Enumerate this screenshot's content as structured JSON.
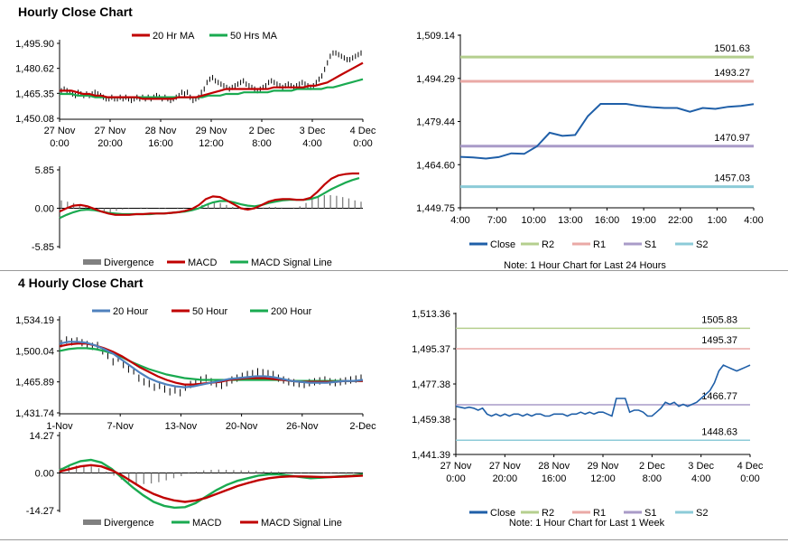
{
  "sections": {
    "hourly_title": "Hourly Close Chart",
    "four_hourly_title": "4 Hourly Close Chart"
  },
  "colors": {
    "close": "#1f5fa8",
    "r2": "#b5cf8e",
    "r1": "#eaa9a6",
    "s1": "#a99bc8",
    "s2": "#8ccbd8",
    "ma_red": "#c00000",
    "ma_green": "#1aaa50",
    "ma_blue": "#4f81bd",
    "divergence": "#808080",
    "price": "#000000"
  },
  "chart_data": [
    {
      "id": "hourly_price",
      "type": "line",
      "title": "",
      "legend": [
        "20 Hr MA",
        "50 Hrs MA"
      ],
      "yticks": [
        "1,495.90",
        "1,480.62",
        "1,465.35",
        "1,450.08"
      ],
      "ylim": [
        1450.08,
        1495.9
      ],
      "xticks": [
        [
          "27 Nov",
          "0:00"
        ],
        [
          "27 Nov",
          "20:00"
        ],
        [
          "28 Nov",
          "16:00"
        ],
        [
          "29 Nov",
          "12:00"
        ],
        [
          "2 Dec",
          "8:00"
        ],
        [
          "3 Dec",
          "4:00"
        ],
        [
          "4 Dec",
          "0:00"
        ]
      ],
      "series": [
        {
          "name": "Price",
          "values": [
            1467,
            1468,
            1467,
            1466,
            1465,
            1464,
            1466,
            1465,
            1464,
            1465,
            1464,
            1465,
            1466,
            1465,
            1464,
            1463,
            1462,
            1462,
            1463,
            1462,
            1462,
            1463,
            1462,
            1463,
            1462,
            1461,
            1462,
            1463,
            1462,
            1463,
            1462,
            1463,
            1462,
            1463,
            1464,
            1463,
            1462,
            1463,
            1462,
            1461,
            1462,
            1463,
            1464,
            1466,
            1465,
            1466,
            1463,
            1461,
            1462,
            1463,
            1466,
            1468,
            1472,
            1474,
            1475,
            1473,
            1472,
            1471,
            1470,
            1469,
            1468,
            1469,
            1470,
            1471,
            1472,
            1473,
            1471,
            1470,
            1469,
            1468,
            1467,
            1468,
            1469,
            1470,
            1472,
            1473,
            1472,
            1471,
            1470,
            1469,
            1470,
            1471,
            1470,
            1469,
            1470,
            1471,
            1472,
            1471,
            1470,
            1469,
            1470,
            1472,
            1474,
            1476,
            1480,
            1484,
            1488,
            1490,
            1490,
            1489,
            1488,
            1487,
            1486,
            1486,
            1487,
            1488,
            1489,
            1490
          ]
        },
        {
          "name": "20 Hr MA",
          "values": [
            1467,
            1467,
            1467,
            1466,
            1465,
            1465,
            1464,
            1464,
            1463,
            1463,
            1463,
            1463,
            1463,
            1463,
            1462,
            1462,
            1462,
            1462,
            1462,
            1462,
            1463,
            1463,
            1463,
            1463,
            1464,
            1465,
            1466,
            1467,
            1468,
            1468,
            1468,
            1468,
            1468,
            1468,
            1468,
            1468,
            1469,
            1469,
            1469,
            1469,
            1469,
            1469,
            1470,
            1470,
            1471,
            1472,
            1474,
            1476,
            1478,
            1480,
            1482,
            1484
          ]
        },
        {
          "name": "50 Hrs MA",
          "values": [
            1465,
            1465,
            1465,
            1464,
            1464,
            1464,
            1463,
            1463,
            1463,
            1463,
            1463,
            1463,
            1463,
            1463,
            1463,
            1463,
            1463,
            1463,
            1463,
            1463,
            1463,
            1463,
            1463,
            1463,
            1463,
            1464,
            1464,
            1464,
            1465,
            1465,
            1465,
            1466,
            1466,
            1466,
            1466,
            1466,
            1467,
            1467,
            1467,
            1467,
            1468,
            1468,
            1468,
            1468,
            1468,
            1469,
            1469,
            1470,
            1471,
            1472,
            1473,
            1474
          ]
        }
      ]
    },
    {
      "id": "hourly_macd",
      "type": "line",
      "title": "",
      "legend": [
        "Divergence",
        "MACD",
        "MACD Signal Line"
      ],
      "yticks": [
        "5.85",
        "0.00",
        "-5.85"
      ],
      "ylim": [
        -5.85,
        5.85
      ],
      "series": [
        {
          "name": "Divergence",
          "values": [
            1.2,
            1.0,
            0.8,
            0.6,
            0.3,
            -0.1,
            -0.3,
            -0.5,
            -0.6,
            -0.4,
            -0.2,
            -0.1,
            0.0,
            0.1,
            0.1,
            0.0,
            -0.1,
            -0.1,
            0.0,
            0.1,
            0.1,
            0.0,
            0.2,
            0.5,
            0.8,
            1.0,
            0.8,
            0.5,
            0.2,
            0.0,
            -0.3,
            -0.2,
            0.0,
            0.1,
            0.2,
            0.2,
            0.1,
            0.0,
            0.1,
            0.3,
            0.8,
            1.4,
            1.8,
            2.0,
            2.0,
            1.9,
            1.7,
            1.5,
            1.2,
            1.0
          ]
        },
        {
          "name": "MACD",
          "values": [
            -0.5,
            0.0,
            0.4,
            0.5,
            0.3,
            -0.1,
            -0.5,
            -0.8,
            -1.0,
            -1.0,
            -1.0,
            -0.9,
            -0.9,
            -0.8,
            -0.8,
            -0.8,
            -0.7,
            -0.6,
            -0.4,
            -0.1,
            0.5,
            1.4,
            1.8,
            1.7,
            1.2,
            0.6,
            0.0,
            -0.2,
            0.0,
            0.5,
            1.0,
            1.3,
            1.4,
            1.4,
            1.3,
            1.3,
            1.6,
            2.5,
            3.6,
            4.5,
            5.0,
            5.2,
            5.3,
            5.3
          ]
        },
        {
          "name": "MACD Signal Line",
          "values": [
            -1.5,
            -1.0,
            -0.6,
            -0.3,
            -0.2,
            -0.3,
            -0.5,
            -0.7,
            -0.8,
            -0.9,
            -0.9,
            -0.9,
            -0.9,
            -0.9,
            -0.8,
            -0.8,
            -0.7,
            -0.6,
            -0.5,
            -0.3,
            0.0,
            0.5,
            0.9,
            1.1,
            1.1,
            0.9,
            0.6,
            0.4,
            0.3,
            0.5,
            0.8,
            1.0,
            1.2,
            1.3,
            1.3,
            1.3,
            1.4,
            1.7,
            2.3,
            2.9,
            3.4,
            3.9,
            4.3,
            4.6
          ]
        }
      ]
    },
    {
      "id": "hourly_pivots",
      "type": "line",
      "title": "",
      "legend": [
        "Close",
        "R2",
        "R1",
        "S1",
        "S2"
      ],
      "yticks": [
        "1,509.14",
        "1,494.29",
        "1,479.44",
        "1,464.60",
        "1,449.75"
      ],
      "ylim": [
        1449.75,
        1509.14
      ],
      "xticks": [
        "4:00",
        "7:00",
        "10:00",
        "13:00",
        "16:00",
        "19:00",
        "22:00",
        "1:00",
        "4:00"
      ],
      "levels": {
        "r2": "1501.63",
        "r1": "1493.27",
        "s1": "1470.97",
        "s2": "1457.03"
      },
      "series": [
        {
          "name": "Close",
          "values": [
            1467.3,
            1467.1,
            1466.7,
            1467.2,
            1468.5,
            1468.3,
            1470.9,
            1475.6,
            1474.5,
            1474.8,
            1481.3,
            1485.5,
            1485.5,
            1485.5,
            1484.8,
            1484.4,
            1484.1,
            1484.1,
            1482.8,
            1484.1,
            1483.8,
            1484.5,
            1484.8,
            1485.4
          ]
        }
      ],
      "note": "Note: 1 Hour Chart for Last 24 Hours"
    },
    {
      "id": "four_hourly_price",
      "type": "line",
      "title": "",
      "legend": [
        "20 Hour",
        "50 Hour",
        "200 Hour"
      ],
      "yticks": [
        "1,534.19",
        "1,500.04",
        "1,465.89",
        "1,431.74"
      ],
      "ylim": [
        1431.74,
        1534.19
      ],
      "xticks": [
        "1-Nov",
        "7-Nov",
        "13-Nov",
        "20-Nov",
        "26-Nov",
        "2-Dec"
      ],
      "series": [
        {
          "name": "Price",
          "values": [
            1508,
            1512,
            1510,
            1511,
            1509,
            1507,
            1505,
            1506,
            1500,
            1495,
            1488,
            1492,
            1485,
            1480,
            1478,
            1470,
            1466,
            1464,
            1460,
            1462,
            1458,
            1455,
            1457,
            1454,
            1460,
            1463,
            1465,
            1468,
            1470,
            1466,
            1464,
            1462,
            1465,
            1468,
            1470,
            1472,
            1474,
            1475,
            1477,
            1476,
            1475,
            1474,
            1470,
            1468,
            1466,
            1465,
            1464,
            1463,
            1465,
            1466,
            1467,
            1468,
            1466,
            1465,
            1466,
            1467,
            1468,
            1469,
            1470
          ]
        },
        {
          "name": "20 Hour",
          "values": [
            1508,
            1510,
            1510,
            1509,
            1506,
            1502,
            1497,
            1490,
            1483,
            1476,
            1470,
            1466,
            1463,
            1461,
            1460,
            1461,
            1463,
            1465,
            1467,
            1469,
            1470,
            1471,
            1472,
            1472,
            1471,
            1469,
            1467,
            1466,
            1465,
            1465,
            1465,
            1466,
            1467,
            1467,
            1468
          ]
        },
        {
          "name": "50 Hour",
          "values": [
            1505,
            1507,
            1508,
            1508,
            1506,
            1503,
            1499,
            1494,
            1488,
            1482,
            1477,
            1472,
            1468,
            1465,
            1463,
            1463,
            1464,
            1465,
            1466,
            1468,
            1469,
            1470,
            1470,
            1470,
            1469,
            1468,
            1467,
            1466,
            1466,
            1466,
            1466,
            1466,
            1467,
            1467,
            1467
          ]
        },
        {
          "name": "200 Hour",
          "values": [
            1500,
            1502,
            1503,
            1503,
            1502,
            1500,
            1497,
            1493,
            1488,
            1484,
            1480,
            1477,
            1474,
            1472,
            1470,
            1469,
            1468,
            1468,
            1468,
            1468,
            1468,
            1468,
            1468,
            1468,
            1468,
            1468,
            1467,
            1467,
            1467,
            1467,
            1467,
            1467,
            1467,
            1467,
            1467
          ]
        }
      ]
    },
    {
      "id": "four_hourly_macd",
      "type": "line",
      "title": "",
      "legend": [
        "Divergence",
        "MACD",
        "MACD Signal Line"
      ],
      "yticks": [
        "14.27",
        "0.00",
        "-14.27"
      ],
      "ylim": [
        -14.27,
        14.27
      ],
      "series": [
        {
          "name": "Divergence",
          "values": [
            2.0,
            2.5,
            2.8,
            3.0,
            2.5,
            1.8,
            0.5,
            -1.0,
            -2.5,
            -3.5,
            -4.0,
            -4.2,
            -4.0,
            -3.5,
            -2.8,
            -2.0,
            -1.2,
            -0.2,
            0.5,
            1.0,
            1.2,
            1.3,
            1.2,
            1.1,
            1.0,
            0.9,
            0.8,
            0.7,
            0.6,
            0.5,
            0.4,
            0.3,
            0.2,
            0.1,
            0.0,
            -0.1,
            -0.2,
            -0.3,
            -0.3,
            -0.2,
            -0.1
          ]
        },
        {
          "name": "MACD",
          "values": [
            1.0,
            3.0,
            4.5,
            5.0,
            4.0,
            1.5,
            -2.0,
            -5.5,
            -8.5,
            -11.0,
            -12.5,
            -13.2,
            -13.0,
            -11.5,
            -9.0,
            -6.5,
            -4.5,
            -3.0,
            -2.0,
            -1.0,
            -0.5,
            -0.5,
            -1.0,
            -1.5,
            -2.0,
            -1.8,
            -1.5,
            -1.2,
            -1.0,
            -0.5
          ]
        },
        {
          "name": "MACD Signal Line",
          "values": [
            0.5,
            1.5,
            2.5,
            3.0,
            2.5,
            1.0,
            -1.0,
            -3.5,
            -6.0,
            -8.0,
            -9.5,
            -10.5,
            -11.0,
            -10.5,
            -9.5,
            -8.0,
            -6.5,
            -5.0,
            -3.8,
            -2.8,
            -2.0,
            -1.5,
            -1.3,
            -1.3,
            -1.4,
            -1.5,
            -1.5,
            -1.4,
            -1.2,
            -1.0
          ]
        }
      ]
    },
    {
      "id": "four_hourly_pivots",
      "type": "line",
      "title": "",
      "legend": [
        "Close",
        "R2",
        "R1",
        "S1",
        "S2"
      ],
      "yticks": [
        "1,513.36",
        "1,495.37",
        "1,477.38",
        "1,459.38",
        "1,441.39"
      ],
      "ylim": [
        1441.39,
        1513.36
      ],
      "xticks": [
        [
          "27 Nov",
          "0:00"
        ],
        [
          "27 Nov",
          "20:00"
        ],
        [
          "28 Nov",
          "16:00"
        ],
        [
          "29 Nov",
          "12:00"
        ],
        [
          "2 Dec",
          "8:00"
        ],
        [
          "3 Dec",
          "4:00"
        ],
        [
          "4 Dec",
          "0:00"
        ]
      ],
      "levels": {
        "r2": "1505.83",
        "r1": "1495.37",
        "s1": "1466.77",
        "s2": "1448.63"
      },
      "series": [
        {
          "name": "Close",
          "values": [
            1466,
            1465.5,
            1465,
            1465.5,
            1465,
            1464,
            1465,
            1462,
            1461,
            1462,
            1461,
            1462,
            1461,
            1462,
            1462,
            1461,
            1462,
            1461,
            1462,
            1462,
            1461,
            1461,
            1462,
            1462,
            1462,
            1461,
            1462,
            1462,
            1463,
            1462,
            1463,
            1462,
            1463,
            1463,
            1462,
            1461,
            1470,
            1470,
            1470,
            1463,
            1464,
            1464,
            1463,
            1461,
            1461,
            1463,
            1465,
            1468,
            1467,
            1468,
            1466,
            1467,
            1466,
            1467,
            1468,
            1470,
            1472,
            1474,
            1478,
            1484,
            1487,
            1486,
            1485,
            1484,
            1485,
            1486,
            1487
          ]
        }
      ],
      "note": "Note: 1 Hour Chart for Last 1 Week"
    }
  ]
}
